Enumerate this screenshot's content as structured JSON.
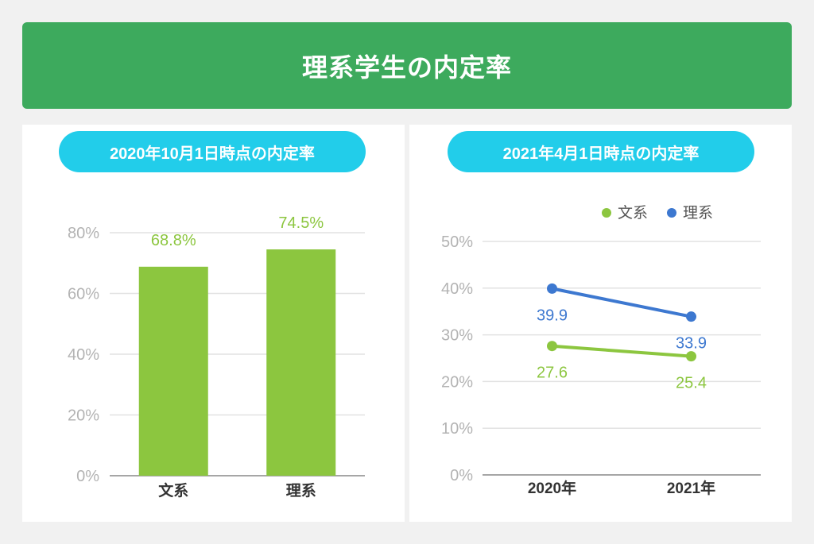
{
  "header": {
    "title": "理系学生の内定率",
    "color": "#3daa5d"
  },
  "chart_data": [
    {
      "type": "bar",
      "title": "2020年10月1日時点の内定率",
      "categories": [
        "文系",
        "理系"
      ],
      "values": [
        68.8,
        74.5
      ],
      "value_labels": [
        "68.8%",
        "74.5%"
      ],
      "ylim": [
        0,
        80
      ],
      "yticks": [
        0,
        20,
        40,
        60,
        80
      ],
      "ytick_labels": [
        "0%",
        "20%",
        "40%",
        "60%",
        "80%"
      ],
      "grid": true,
      "color": "#8cc63f"
    },
    {
      "type": "line",
      "title": "2021年4月1日時点の内定率",
      "x": [
        "2020年",
        "2021年"
      ],
      "series": [
        {
          "name": "文系",
          "values": [
            27.6,
            25.4
          ],
          "value_labels": [
            "27.6",
            "25.4"
          ],
          "color": "#8cc63f"
        },
        {
          "name": "理系",
          "values": [
            39.9,
            33.9
          ],
          "value_labels": [
            "39.9",
            "33.9"
          ],
          "color": "#3d78d0"
        }
      ],
      "ylim": [
        0,
        50
      ],
      "yticks": [
        0,
        10,
        20,
        30,
        40,
        50
      ],
      "ytick_labels": [
        "0%",
        "10%",
        "20%",
        "30%",
        "40%",
        "50%"
      ],
      "grid": true,
      "legend": "top-right"
    }
  ]
}
